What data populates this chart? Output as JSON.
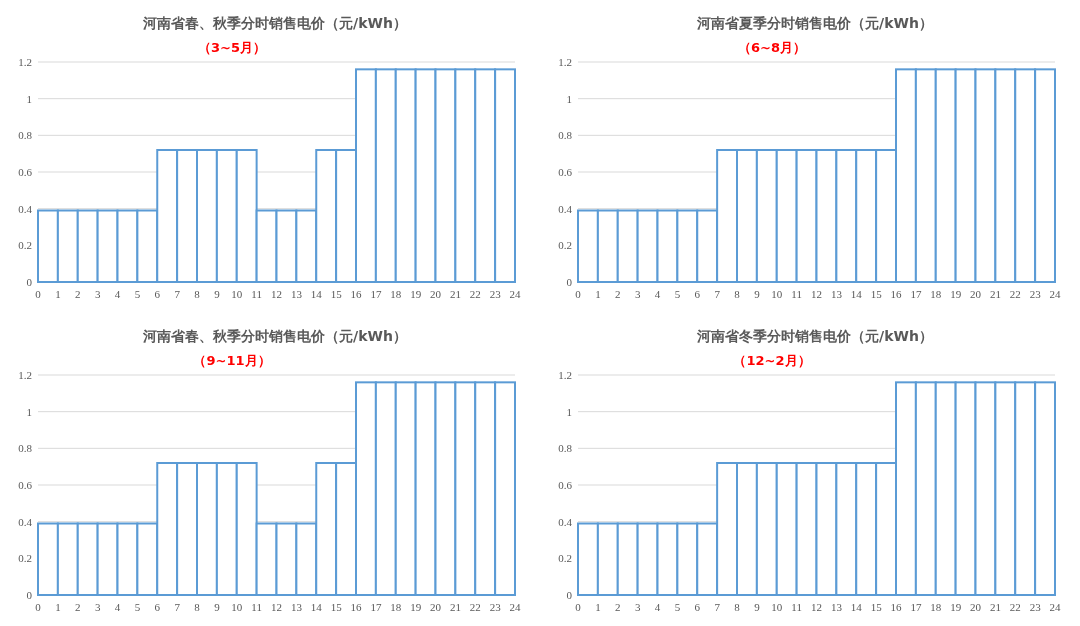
{
  "chart_data": [
    {
      "type": "histogram",
      "title": "河南省春、秋季分时销售电价（元/kWh）",
      "subtitle": "（3~5月）",
      "bins": [
        0,
        1,
        2,
        3,
        4,
        5,
        6,
        7,
        8,
        9,
        10,
        11,
        12,
        13,
        14,
        15,
        16,
        17,
        18,
        19,
        20,
        21,
        22,
        23,
        24
      ],
      "color": "#5b9bd5",
      "values": [
        0.39,
        0.39,
        0.39,
        0.39,
        0.39,
        0.39,
        0.72,
        0.72,
        0.72,
        0.72,
        0.72,
        0.39,
        0.39,
        0.39,
        0.72,
        0.72,
        1.16,
        1.16,
        1.16,
        1.16,
        1.16,
        1.16,
        1.16,
        1.16
      ],
      "xlim": [
        0,
        24
      ],
      "xticks": [
        0,
        1,
        2,
        3,
        4,
        5,
        6,
        7,
        8,
        9,
        10,
        11,
        12,
        13,
        14,
        15,
        16,
        17,
        18,
        19,
        20,
        21,
        22,
        23,
        24
      ],
      "ylim": [
        0,
        1.2
      ],
      "yticks": [
        0,
        0.2,
        0.4,
        0.6,
        0.8,
        1,
        1.2
      ],
      "grid": "y"
    },
    {
      "type": "histogram",
      "title": "河南省夏季分时销售电价（元/kWh）",
      "subtitle": "（6~8月）",
      "bins": [
        0,
        1,
        2,
        3,
        4,
        5,
        6,
        7,
        8,
        9,
        10,
        11,
        12,
        13,
        14,
        15,
        16,
        17,
        18,
        19,
        20,
        21,
        22,
        23,
        24
      ],
      "color": "#5b9bd5",
      "values": [
        0.39,
        0.39,
        0.39,
        0.39,
        0.39,
        0.39,
        0.39,
        0.72,
        0.72,
        0.72,
        0.72,
        0.72,
        0.72,
        0.72,
        0.72,
        0.72,
        1.16,
        1.16,
        1.16,
        1.16,
        1.16,
        1.16,
        1.16,
        1.16
      ],
      "xlim": [
        0,
        24
      ],
      "xticks": [
        0,
        1,
        2,
        3,
        4,
        5,
        6,
        7,
        8,
        9,
        10,
        11,
        12,
        13,
        14,
        15,
        16,
        17,
        18,
        19,
        20,
        21,
        22,
        23,
        24
      ],
      "ylim": [
        0,
        1.2
      ],
      "yticks": [
        0,
        0.2,
        0.4,
        0.6,
        0.8,
        1,
        1.2
      ],
      "grid": "y"
    },
    {
      "type": "histogram",
      "title": "河南省春、秋季分时销售电价（元/kWh）",
      "subtitle": "（9~11月）",
      "bins": [
        0,
        1,
        2,
        3,
        4,
        5,
        6,
        7,
        8,
        9,
        10,
        11,
        12,
        13,
        14,
        15,
        16,
        17,
        18,
        19,
        20,
        21,
        22,
        23,
        24
      ],
      "color": "#5b9bd5",
      "values": [
        0.39,
        0.39,
        0.39,
        0.39,
        0.39,
        0.39,
        0.72,
        0.72,
        0.72,
        0.72,
        0.72,
        0.39,
        0.39,
        0.39,
        0.72,
        0.72,
        1.16,
        1.16,
        1.16,
        1.16,
        1.16,
        1.16,
        1.16,
        1.16
      ],
      "xlim": [
        0,
        24
      ],
      "xticks": [
        0,
        1,
        2,
        3,
        4,
        5,
        6,
        7,
        8,
        9,
        10,
        11,
        12,
        13,
        14,
        15,
        16,
        17,
        18,
        19,
        20,
        21,
        22,
        23,
        24
      ],
      "ylim": [
        0,
        1.2
      ],
      "yticks": [
        0,
        0.2,
        0.4,
        0.6,
        0.8,
        1,
        1.2
      ],
      "grid": "y"
    },
    {
      "type": "histogram",
      "title": "河南省冬季分时销售电价（元/kWh）",
      "subtitle": "（12~2月）",
      "bins": [
        0,
        1,
        2,
        3,
        4,
        5,
        6,
        7,
        8,
        9,
        10,
        11,
        12,
        13,
        14,
        15,
        16,
        17,
        18,
        19,
        20,
        21,
        22,
        23,
        24
      ],
      "color": "#5b9bd5",
      "values": [
        0.39,
        0.39,
        0.39,
        0.39,
        0.39,
        0.39,
        0.39,
        0.72,
        0.72,
        0.72,
        0.72,
        0.72,
        0.72,
        0.72,
        0.72,
        0.72,
        1.16,
        1.16,
        1.16,
        1.16,
        1.16,
        1.16,
        1.16,
        1.16
      ],
      "xlim": [
        0,
        24
      ],
      "xticks": [
        0,
        1,
        2,
        3,
        4,
        5,
        6,
        7,
        8,
        9,
        10,
        11,
        12,
        13,
        14,
        15,
        16,
        17,
        18,
        19,
        20,
        21,
        22,
        23,
        24
      ],
      "ylim": [
        0,
        1.2
      ],
      "yticks": [
        0,
        0.2,
        0.4,
        0.6,
        0.8,
        1,
        1.2
      ],
      "grid": "y"
    }
  ]
}
